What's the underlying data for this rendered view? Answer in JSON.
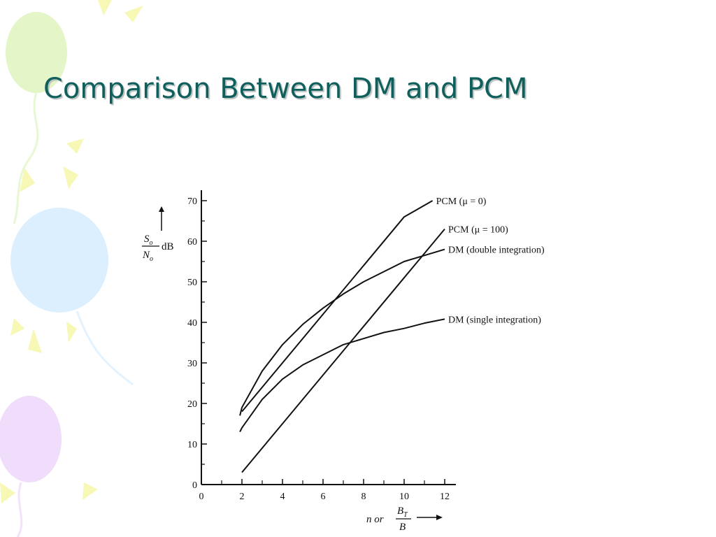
{
  "slide": {
    "title": "Comparison Between DM and PCM"
  },
  "colors": {
    "title": "#0f5f5c",
    "curve": "#111111",
    "balloon_green": "#e4f6c8",
    "balloon_blue": "#dcefff",
    "balloon_purple": "#f0dcfb",
    "ray_yellow": "#f7f7b6"
  },
  "decoration": {
    "left_border": [
      "balloon-green",
      "balloon-blue",
      "balloon-purple",
      "sun-ray"
    ]
  },
  "chart_data": {
    "type": "line",
    "title": "",
    "xlabel": {
      "text": "n or",
      "fraction_numerator": "B",
      "fraction_numerator_subscript": "T",
      "fraction_denominator": "B",
      "arrow": "right"
    },
    "ylabel": {
      "fraction_numerator": "S",
      "fraction_numerator_subscript": "o",
      "fraction_denominator": "N",
      "fraction_denominator_subscript": "o",
      "unit": "dB",
      "arrow": "up"
    },
    "xlim": [
      0,
      12.5
    ],
    "ylim": [
      0,
      72
    ],
    "xticks": [
      0,
      2,
      4,
      6,
      8,
      10,
      12
    ],
    "yticks": [
      0,
      10,
      20,
      30,
      40,
      50,
      60,
      70
    ],
    "grid": false,
    "legend": "inline labels at right end of each curve",
    "series": [
      {
        "name": "PCM (μ = 0)",
        "x": [
          2,
          4,
          6,
          8,
          10,
          11.4
        ],
        "y": [
          18,
          30,
          42,
          54,
          66,
          70
        ]
      },
      {
        "name": "PCM (μ = 100)",
        "x": [
          2,
          4,
          6,
          8,
          10,
          12
        ],
        "y": [
          3,
          15,
          27,
          39,
          51,
          63
        ]
      },
      {
        "name": "DM (double integration)",
        "x": [
          1.9,
          2,
          3,
          4,
          5,
          6,
          7,
          8,
          9,
          10,
          11,
          12
        ],
        "y": [
          17,
          19,
          28,
          34.5,
          39.5,
          43.5,
          47,
          50,
          52.5,
          55,
          56.5,
          58
        ]
      },
      {
        "name": "DM (single integration)",
        "x": [
          1.9,
          2,
          3,
          4,
          5,
          6,
          7,
          8,
          9,
          10,
          11,
          12
        ],
        "y": [
          13,
          14,
          21,
          26,
          29.5,
          32,
          34.5,
          36,
          37.5,
          38.5,
          39.8,
          40.8
        ]
      }
    ]
  }
}
